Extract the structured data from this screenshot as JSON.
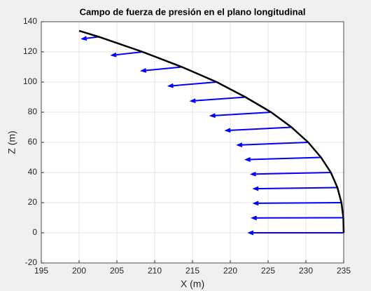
{
  "chart_data": {
    "type": "quiver",
    "title": "Campo de fuerza de presión en el plano longitudinal",
    "xlabel": "X (m)",
    "ylabel": "Z (m)",
    "xlim": [
      195,
      235
    ],
    "xticks": [
      195,
      200,
      205,
      210,
      215,
      220,
      225,
      230,
      235
    ],
    "ylim": [
      -20,
      140
    ],
    "yticks": [
      -20,
      0,
      20,
      40,
      60,
      80,
      100,
      120,
      140
    ],
    "grid": true,
    "curve": {
      "color": "#000000",
      "x": [
        235,
        234.95,
        234.7,
        234.17,
        233.3,
        232.0,
        230.3,
        228.1,
        225.4,
        222.0,
        218.2,
        213.6,
        208.4,
        202.6,
        200
      ],
      "y": [
        0,
        10,
        20,
        30,
        40,
        50,
        60,
        70,
        80,
        90,
        100,
        110,
        120,
        130,
        134
      ]
    },
    "arrows": {
      "color": "#0000ff",
      "x": [
        235,
        234.95,
        234.7,
        234.17,
        233.3,
        232.0,
        230.3,
        228.1,
        225.4,
        222.0,
        218.2,
        213.6,
        208.4,
        202.6
      ],
      "y": [
        0,
        10,
        20,
        30,
        40,
        50,
        60,
        70,
        80,
        90,
        100,
        110,
        120,
        130
      ],
      "u": [
        -12.5,
        -12.02,
        -11.53,
        -11.01,
        -10.47,
        -9.9,
        -9.29,
        -8.64,
        -7.94,
        -7.16,
        -6.3,
        -5.29,
        -4.04,
        -2.16
      ],
      "w": [
        0,
        -0.16,
        -0.43,
        -0.76,
        -1.11,
        -1.47,
        -1.82,
        -2.13,
        -2.39,
        -2.58,
        -2.65,
        -2.57,
        -2.24,
        -1.35
      ]
    }
  }
}
